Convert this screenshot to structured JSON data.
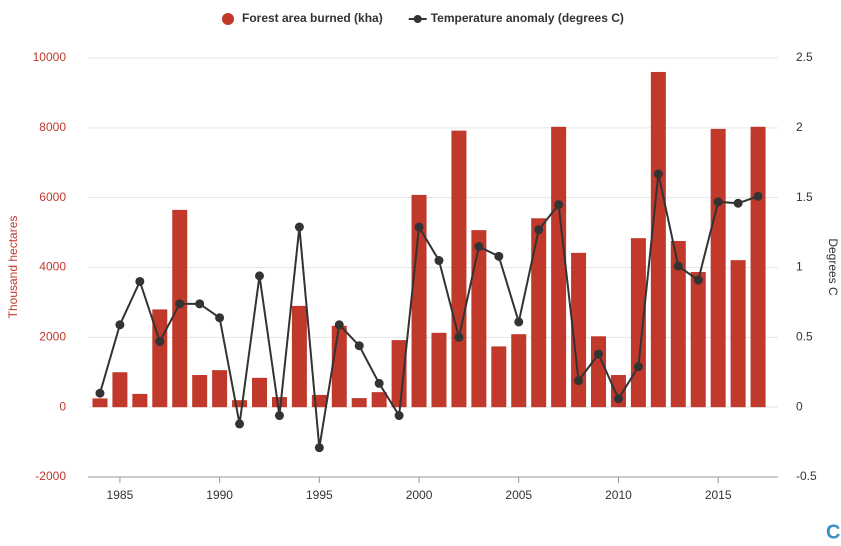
{
  "chart_data": {
    "type": "combo",
    "x": [
      1984,
      1985,
      1986,
      1987,
      1988,
      1989,
      1990,
      1991,
      1992,
      1993,
      1994,
      1995,
      1996,
      1997,
      1998,
      1999,
      2000,
      2001,
      2002,
      2003,
      2004,
      2005,
      2006,
      2007,
      2008,
      2009,
      2010,
      2011,
      2012,
      2013,
      2014,
      2015,
      2016,
      2017
    ],
    "series": [
      {
        "name": "Forest area burned (kha)",
        "type": "bar",
        "color": "#c0392b",
        "values": [
          250,
          1000,
          380,
          2800,
          5650,
          920,
          1060,
          200,
          840,
          290,
          2900,
          350,
          2330,
          260,
          430,
          1920,
          6080,
          2130,
          7920,
          5070,
          1740,
          2090,
          5410,
          8030,
          4420,
          2030,
          920,
          4840,
          9600,
          4760,
          3870,
          7970,
          4210,
          8030
        ]
      },
      {
        "name": "Temperature anomaly (degrees C)",
        "type": "line",
        "color": "#333333",
        "axis": "y2",
        "values": [
          0.1,
          0.59,
          0.9,
          0.47,
          0.74,
          0.74,
          0.64,
          -0.12,
          0.94,
          -0.06,
          1.29,
          -0.29,
          0.59,
          0.44,
          0.17,
          -0.06,
          1.29,
          1.05,
          0.5,
          1.15,
          1.08,
          0.61,
          1.27,
          1.45,
          0.19,
          0.38,
          0.06,
          0.29,
          1.67,
          1.01,
          0.91,
          1.47,
          1.46,
          1.51
        ]
      }
    ],
    "ylabel": "Thousand hectares",
    "y2label": "Degrees C",
    "xlim": [
      1983.4,
      2018
    ],
    "xticks": [
      1985,
      1990,
      1995,
      2000,
      2005,
      2010,
      2015
    ],
    "ylim": [
      -2000,
      10000
    ],
    "yticks": [
      -2000,
      0,
      2000,
      4000,
      6000,
      8000,
      10000
    ],
    "y2lim": [
      -0.5,
      2.5
    ],
    "y2ticks": [
      -0.5,
      0,
      0.5,
      1,
      1.5,
      2,
      2.5
    ],
    "grid": true,
    "legend": "top"
  },
  "logo": "CB"
}
